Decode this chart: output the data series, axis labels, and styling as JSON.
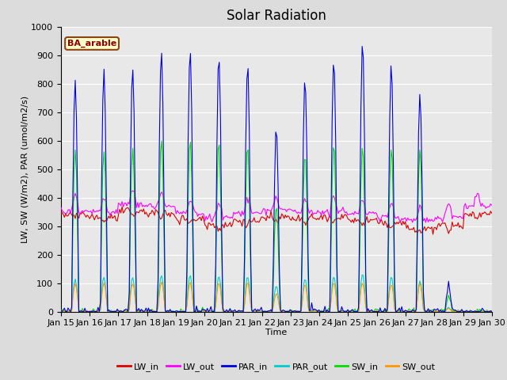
{
  "title": "Solar Radiation",
  "xlabel": "Time",
  "ylabel": "LW, SW (W/m2), PAR (umol/m2/s)",
  "annotation": "BA_arable",
  "ylim": [
    0,
    1000
  ],
  "yticks": [
    0,
    100,
    200,
    300,
    400,
    500,
    600,
    700,
    800,
    900,
    1000
  ],
  "xtick_labels": [
    "Jan 15",
    "Jan 16",
    "Jan 17",
    "Jan 18",
    "Jan 19",
    "Jan 20",
    "Jan 21",
    "Jan 22",
    "Jan 23",
    "Jan 24",
    "Jan 25",
    "Jan 26",
    "Jan 27",
    "Jan 28",
    "Jan 29",
    "Jan 30"
  ],
  "series_colors": {
    "LW_in": "#dd0000",
    "LW_out": "#ff00ff",
    "PAR_in": "#0000dd",
    "PAR_out": "#00cccc",
    "SW_in": "#00dd00",
    "SW_out": "#ff9900"
  },
  "par_in_peaks": [
    810,
    850,
    855,
    920,
    915,
    900,
    860,
    630,
    815,
    890,
    935,
    865,
    760,
    90,
    0
  ],
  "sw_in_peaks": [
    560,
    570,
    565,
    610,
    605,
    595,
    580,
    370,
    550,
    590,
    580,
    580,
    570,
    55,
    0
  ],
  "background_color": "#e8e8e8",
  "plot_bg_color": "#e8e8e8",
  "grid_color": "#ffffff",
  "title_fontsize": 12,
  "axis_label_fontsize": 8,
  "tick_fontsize": 8,
  "n_days": 15,
  "n_hours": 360
}
